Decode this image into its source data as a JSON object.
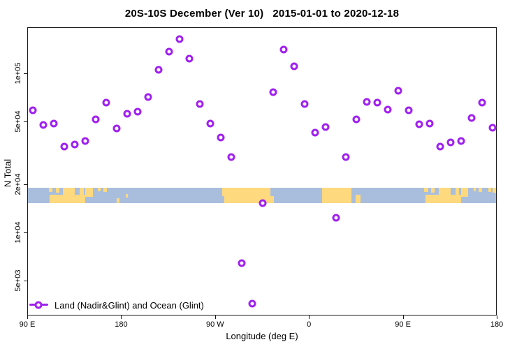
{
  "chart_data": {
    "type": "scatter",
    "title": "20S-10S December (Ver 10)   2015-01-01 to 2020-12-18",
    "xlabel": "Longitude (deg E)",
    "ylabel": "N Total",
    "grid": false,
    "x_axis": {
      "range": [
        90,
        540
      ],
      "ticks": [
        {
          "value": 90,
          "label": "90 E"
        },
        {
          "value": 180,
          "label": "180"
        },
        {
          "value": 270,
          "label": "90 W"
        },
        {
          "value": 360,
          "label": "0"
        },
        {
          "value": 450,
          "label": "90 E"
        },
        {
          "value": 540,
          "label": "180"
        }
      ]
    },
    "y_axis": {
      "scale": "log",
      "range": [
        2900,
        193000
      ],
      "ticks": [
        {
          "value": 100000,
          "label": "1e+05"
        },
        {
          "value": 50000,
          "label": "5e+04"
        },
        {
          "value": 20000,
          "label": "2e+04"
        },
        {
          "value": 10000,
          "label": "1e+04"
        },
        {
          "value": 5000,
          "label": "5e+03"
        }
      ]
    },
    "series": [
      {
        "name": "Land (Nadir&Glint) and Ocean (Glint)",
        "marker": "open-circle",
        "color": "#A020F0",
        "x": [
          95,
          105,
          115,
          125,
          135,
          145,
          155,
          165,
          175,
          185,
          195,
          205,
          215,
          225,
          235,
          245,
          255,
          265,
          275,
          285,
          295,
          305,
          315,
          325,
          335,
          345,
          355,
          365,
          375,
          385,
          395,
          405,
          415,
          425,
          435,
          445,
          455,
          465,
          475,
          485,
          495,
          505,
          515,
          525,
          535
        ],
        "y": [
          59000,
          48000,
          49000,
          35000,
          36000,
          38000,
          52000,
          66000,
          45500,
          56000,
          58000,
          72000,
          106000,
          138000,
          166000,
          125000,
          65000,
          49000,
          40000,
          30000,
          6500,
          3600,
          15500,
          77000,
          142000,
          112000,
          65000,
          43000,
          46500,
          12500,
          30000,
          52000,
          67000,
          66000,
          60000,
          78500,
          59000,
          48500,
          49000,
          35000,
          37000,
          38000,
          53000,
          66000,
          46000
        ]
      }
    ],
    "map_band": {
      "description": "land/ocean strip for 20S-10S latitude band",
      "ocean_color": "#a9bedd",
      "land_color": "#ffd97e",
      "value_top": 19300,
      "value_bottom": 15500,
      "land_segments": [
        {
          "x0": 110,
          "x1": 113.5,
          "t": 0,
          "b": 0.3
        },
        {
          "x0": 116.5,
          "x1": 120,
          "t": 0,
          "b": 0.33
        },
        {
          "x0": 111,
          "x1": 145,
          "t": 0.45,
          "b": 1
        },
        {
          "x0": 123.5,
          "x1": 135,
          "t": 0,
          "b": 1
        },
        {
          "x0": 139.5,
          "x1": 143.5,
          "t": 0,
          "b": 1
        },
        {
          "x0": 145,
          "x1": 152,
          "t": 0,
          "b": 0.6
        },
        {
          "x0": 157,
          "x1": 159.5,
          "t": 0,
          "b": 0.25
        },
        {
          "x0": 162,
          "x1": 165.5,
          "t": 0,
          "b": 0.3
        },
        {
          "x0": 175,
          "x1": 177.5,
          "t": 0.7,
          "b": 1
        },
        {
          "x0": 183.5,
          "x1": 185.5,
          "t": 0.4,
          "b": 0.65
        },
        {
          "x0": 276,
          "x1": 284,
          "t": 0,
          "b": 0.55
        },
        {
          "x0": 278,
          "x1": 322.5,
          "t": 0,
          "b": 1
        },
        {
          "x0": 322.5,
          "x1": 325.5,
          "t": 0.55,
          "b": 1
        },
        {
          "x0": 372,
          "x1": 400,
          "t": 0,
          "b": 1
        },
        {
          "x0": 404,
          "x1": 408.5,
          "t": 0.45,
          "b": 1
        },
        {
          "x0": 470,
          "x1": 473.5,
          "t": 0,
          "b": 0.3
        },
        {
          "x0": 476.5,
          "x1": 480,
          "t": 0,
          "b": 0.33
        },
        {
          "x0": 471,
          "x1": 505,
          "t": 0.45,
          "b": 1
        },
        {
          "x0": 483.5,
          "x1": 495,
          "t": 0,
          "b": 1
        },
        {
          "x0": 499.5,
          "x1": 503.5,
          "t": 0,
          "b": 1
        },
        {
          "x0": 505,
          "x1": 512,
          "t": 0,
          "b": 0.6
        },
        {
          "x0": 517,
          "x1": 519.5,
          "t": 0,
          "b": 0.25
        },
        {
          "x0": 522,
          "x1": 525.5,
          "t": 0,
          "b": 0.3
        },
        {
          "x0": 531,
          "x1": 534,
          "t": 0,
          "b": 0.3
        },
        {
          "x0": 535.5,
          "x1": 538.5,
          "t": 0,
          "b": 0.35
        }
      ]
    },
    "legend": {
      "position": "bottom-left",
      "label": "Land (Nadir&Glint) and Ocean (Glint)"
    }
  }
}
